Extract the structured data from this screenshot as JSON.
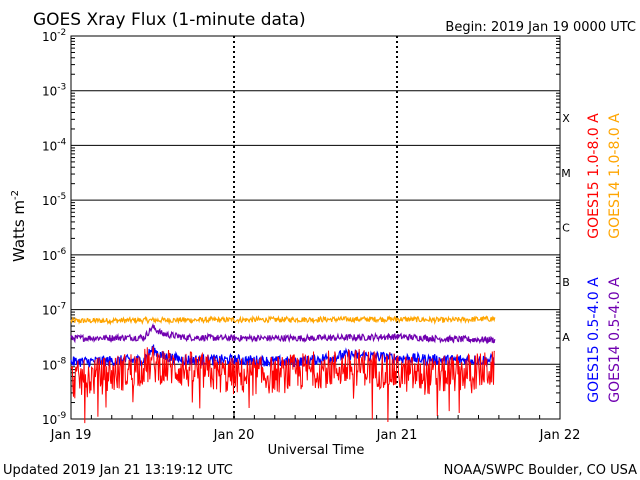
{
  "header": {
    "title": "GOES Xray Flux (1-minute data)",
    "begin": "Begin:  2019 Jan 19 0000 UTC"
  },
  "footer": {
    "updated": "Updated 2019 Jan 21 13:19:12 UTC",
    "credit": "NOAA/SWPC Boulder, CO USA"
  },
  "chart_data": {
    "type": "line",
    "title": "GOES Xray Flux (1-minute data)",
    "xlabel": "Universal Time",
    "ylabel": "Watts m^-2",
    "yscale": "log",
    "ylim": [
      1e-09,
      0.01
    ],
    "x_ticks": [
      "Jan 19",
      "Jan 20",
      "Jan 21",
      "Jan 22"
    ],
    "x_range_days": [
      0,
      3
    ],
    "y_ticks": [
      {
        "base": "10",
        "exp": "-2"
      },
      {
        "base": "10",
        "exp": "-3"
      },
      {
        "base": "10",
        "exp": "-4"
      },
      {
        "base": "10",
        "exp": "-5"
      },
      {
        "base": "10",
        "exp": "-6"
      },
      {
        "base": "10",
        "exp": "-7"
      },
      {
        "base": "10",
        "exp": "-8"
      },
      {
        "base": "10",
        "exp": "-9"
      }
    ],
    "flare_classes": [
      "X",
      "M",
      "C",
      "B",
      "A"
    ],
    "grid": true,
    "legend": [
      {
        "label": "GOES15 1.0-8.0 A",
        "color": "#ff0000"
      },
      {
        "label": "GOES14 1.0-8.0 A",
        "color": "#ffa500"
      },
      {
        "label": "GOES15 0.5-4.0 A",
        "color": "#0000ff"
      },
      {
        "label": "GOES14 0.5-4.0 A",
        "color": "#7000b0"
      }
    ],
    "series": [
      {
        "name": "GOES14 1.0-8.0 A",
        "color": "#ffa500",
        "x": [
          0,
          0.5,
          1.0,
          1.5,
          2.0,
          2.3,
          2.6
        ],
        "y": [
          6.2e-08,
          6.4e-08,
          6.5e-08,
          6.6e-08,
          6.7e-08,
          6.4e-08,
          6.8e-08
        ]
      },
      {
        "name": "GOES14 0.5-4.0 A",
        "color": "#7000b0",
        "x": [
          0,
          0.45,
          0.5,
          0.56,
          0.7,
          1.0,
          1.5,
          2.0,
          2.3,
          2.6
        ],
        "y": [
          3e-08,
          3.1e-08,
          4.8e-08,
          3.6e-08,
          3.1e-08,
          3e-08,
          3e-08,
          3.2e-08,
          2.9e-08,
          2.8e-08
        ]
      },
      {
        "name": "GOES15 0.5-4.0 A",
        "color": "#0000ff",
        "x": [
          0,
          0.45,
          0.5,
          0.56,
          0.7,
          1.0,
          1.4,
          1.7,
          2.0,
          2.3,
          2.6
        ],
        "y": [
          1.1e-08,
          1.2e-08,
          1.9e-08,
          1.4e-08,
          1.2e-08,
          1.2e-08,
          1.1e-08,
          1.5e-08,
          1.3e-08,
          1.2e-08,
          1.2e-08
        ]
      },
      {
        "name": "GOES15 1.0-8.0 A",
        "color": "#ff0000",
        "x": [
          0,
          0.3,
          0.5,
          0.7,
          1.0,
          1.3,
          1.5,
          1.8,
          2.0,
          2.2,
          2.4,
          2.6
        ],
        "y": [
          5e-09,
          7e-09,
          1e-08,
          8e-09,
          6e-09,
          6.5e-09,
          8e-09,
          9e-09,
          7e-09,
          6e-09,
          7e-09,
          8e-09
        ]
      }
    ]
  }
}
